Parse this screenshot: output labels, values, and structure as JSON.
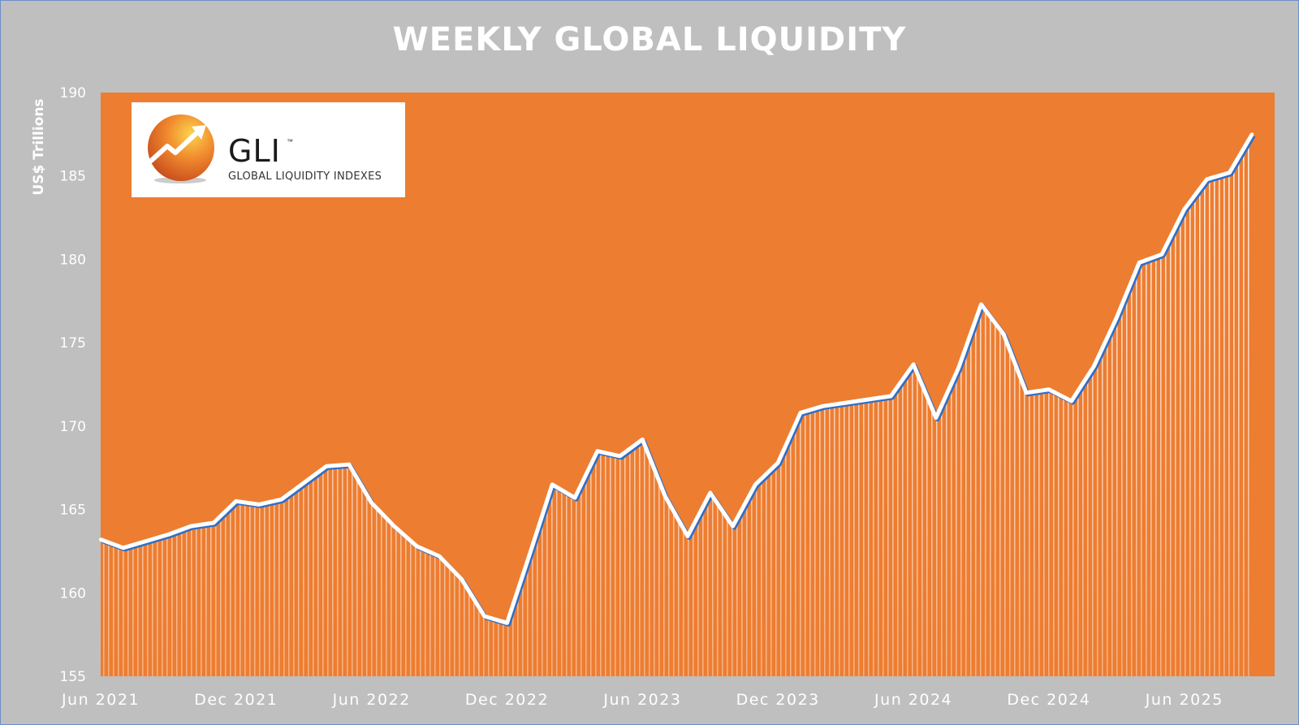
{
  "title": "WEEKLY GLOBAL LIQUIDITY",
  "logo": {
    "name": "GLI",
    "tm": "™",
    "subtitle": "GLOBAL LIQUIDITY INDEXES"
  },
  "colors": {
    "background": "#bfbfbf",
    "plot_fill": "#ed7d31",
    "line": "#ffffff",
    "line_shadow": "#2e6fc7",
    "text": "#ffffff"
  },
  "chart_data": {
    "type": "area",
    "title": "WEEKLY GLOBAL LIQUIDITY",
    "ylabel": "US$ Trillions",
    "xlabel": "",
    "ylim": [
      155,
      190
    ],
    "yticks": [
      "155",
      "160",
      "165",
      "170",
      "175",
      "180",
      "185",
      "190"
    ],
    "xticks": [
      "Jun 2021",
      "Dec 2021",
      "Jun 2022",
      "Dec 2022",
      "Jun 2023",
      "Dec 2023",
      "Jun 2024",
      "Dec 2024",
      "Jun 2025"
    ],
    "x_range": [
      "2021-06",
      "2025-10"
    ],
    "grid": false,
    "legend": "none",
    "series": [
      {
        "values_by_date": [
          [
            "2021-06",
            163.2
          ],
          [
            "2021-07",
            162.7
          ],
          [
            "2021-08",
            163.1
          ],
          [
            "2021-09",
            163.5
          ],
          [
            "2021-10",
            164.0
          ],
          [
            "2021-11",
            164.2
          ],
          [
            "2021-12",
            165.5
          ],
          [
            "2022-01",
            165.3
          ],
          [
            "2022-02",
            165.6
          ],
          [
            "2022-03",
            166.6
          ],
          [
            "2022-04",
            167.6
          ],
          [
            "2022-05",
            167.7
          ],
          [
            "2022-06",
            165.4
          ],
          [
            "2022-07",
            164.0
          ],
          [
            "2022-08",
            162.8
          ],
          [
            "2022-09",
            162.2
          ],
          [
            "2022-10",
            160.8
          ],
          [
            "2022-11",
            158.6
          ],
          [
            "2022-12",
            158.2
          ],
          [
            "2023-01",
            162.3
          ],
          [
            "2023-02",
            166.5
          ],
          [
            "2023-03",
            165.7
          ],
          [
            "2023-04",
            168.5
          ],
          [
            "2023-05",
            168.2
          ],
          [
            "2023-06",
            169.2
          ],
          [
            "2023-07",
            165.8
          ],
          [
            "2023-08",
            163.4
          ],
          [
            "2023-09",
            166.0
          ],
          [
            "2023-10",
            164.0
          ],
          [
            "2023-11",
            166.5
          ],
          [
            "2023-12",
            167.8
          ],
          [
            "2024-01",
            170.8
          ],
          [
            "2024-02",
            171.2
          ],
          [
            "2024-03",
            171.4
          ],
          [
            "2024-04",
            171.6
          ],
          [
            "2024-05",
            171.8
          ],
          [
            "2024-06",
            173.7
          ],
          [
            "2024-07",
            170.5
          ],
          [
            "2024-08",
            173.5
          ],
          [
            "2024-09",
            177.3
          ],
          [
            "2024-10",
            175.5
          ],
          [
            "2024-11",
            172.0
          ],
          [
            "2024-12",
            172.2
          ],
          [
            "2025-01",
            171.5
          ],
          [
            "2025-02",
            173.6
          ],
          [
            "2025-03",
            176.5
          ],
          [
            "2025-04",
            179.8
          ],
          [
            "2025-05",
            180.3
          ],
          [
            "2025-06",
            183.0
          ],
          [
            "2025-07",
            184.8
          ],
          [
            "2025-08",
            185.2
          ],
          [
            "2025-09",
            187.5
          ]
        ]
      }
    ]
  }
}
